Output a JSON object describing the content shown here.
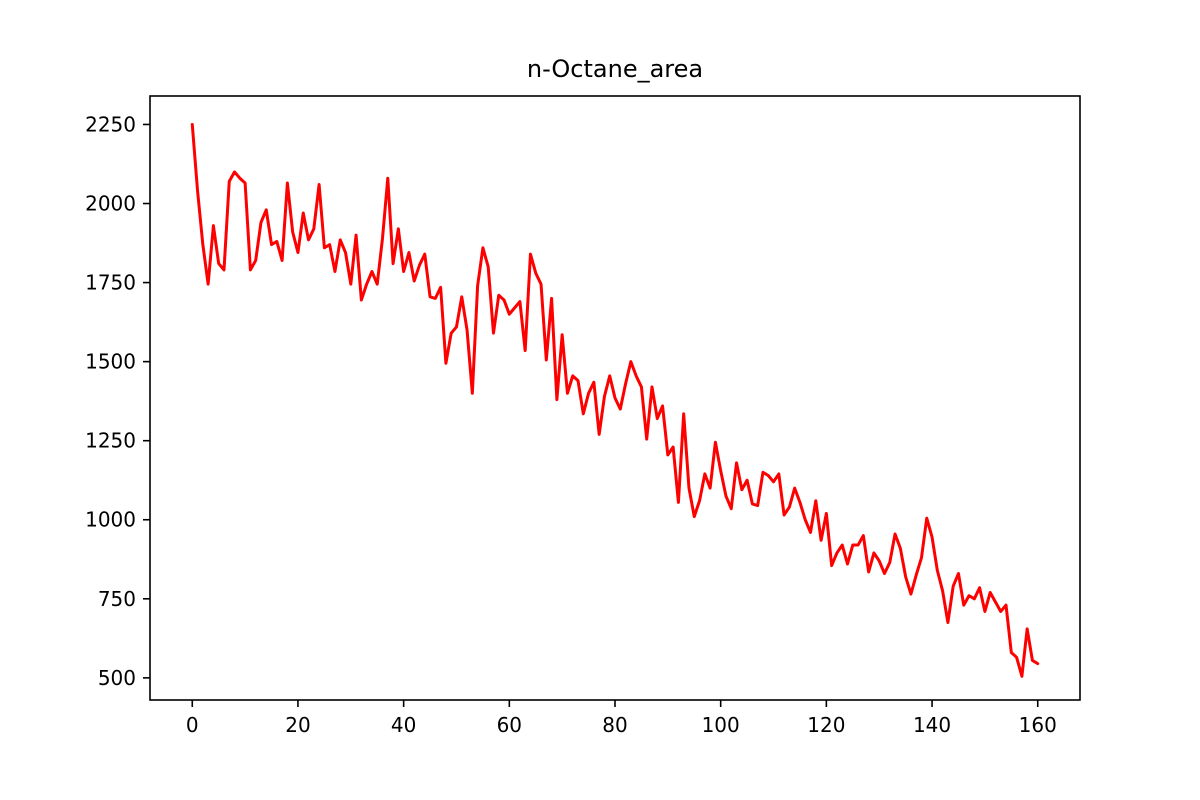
{
  "chart_data": {
    "type": "line",
    "title": "n-Octane_area",
    "xlabel": "",
    "ylabel": "",
    "xlim": [
      -8,
      168
    ],
    "ylim": [
      430,
      2340
    ],
    "x_ticks": [
      0,
      20,
      40,
      60,
      80,
      100,
      120,
      140,
      160
    ],
    "x_tick_labels": [
      "0",
      "20",
      "40",
      "60",
      "80",
      "100",
      "120",
      "140",
      "160"
    ],
    "y_ticks": [
      500,
      750,
      1000,
      1250,
      1500,
      1750,
      2000,
      2250
    ],
    "y_tick_labels": [
      "500",
      "750",
      "1000",
      "1250",
      "1500",
      "1750",
      "2000",
      "2250"
    ],
    "grid": false,
    "legend": "none",
    "series": [
      {
        "color": "#ff0000",
        "x": [
          0,
          1,
          2,
          3,
          4,
          5,
          6,
          7,
          8,
          9,
          10,
          11,
          12,
          13,
          14,
          15,
          16,
          17,
          18,
          19,
          20,
          21,
          22,
          23,
          24,
          25,
          26,
          27,
          28,
          29,
          30,
          31,
          32,
          33,
          34,
          35,
          36,
          37,
          38,
          39,
          40,
          41,
          42,
          43,
          44,
          45,
          46,
          47,
          48,
          49,
          50,
          51,
          52,
          53,
          54,
          55,
          56,
          57,
          58,
          59,
          60,
          61,
          62,
          63,
          64,
          65,
          66,
          67,
          68,
          69,
          70,
          71,
          72,
          73,
          74,
          75,
          76,
          77,
          78,
          79,
          80,
          81,
          82,
          83,
          84,
          85,
          86,
          87,
          88,
          89,
          90,
          91,
          92,
          93,
          94,
          95,
          96,
          97,
          98,
          99,
          100,
          101,
          102,
          103,
          104,
          105,
          106,
          107,
          108,
          109,
          110,
          111,
          112,
          113,
          114,
          115,
          116,
          117,
          118,
          119,
          120,
          121,
          122,
          123,
          124,
          125,
          126,
          127,
          128,
          129,
          130,
          131,
          132,
          133,
          134,
          135,
          136,
          137,
          138,
          139,
          140,
          141,
          142,
          143,
          144,
          145,
          146,
          147,
          148,
          149,
          150,
          151,
          152,
          153,
          154,
          155,
          156,
          157,
          158,
          159,
          160
        ],
        "y": [
          2250,
          2040,
          1870,
          1745,
          1930,
          1810,
          1790,
          2070,
          2100,
          2080,
          2065,
          1790,
          1820,
          1940,
          1980,
          1870,
          1880,
          1820,
          2065,
          1910,
          1845,
          1970,
          1885,
          1920,
          2060,
          1860,
          1870,
          1785,
          1885,
          1845,
          1745,
          1900,
          1695,
          1745,
          1785,
          1745,
          1890,
          2080,
          1810,
          1920,
          1785,
          1845,
          1755,
          1805,
          1840,
          1705,
          1700,
          1735,
          1495,
          1590,
          1610,
          1705,
          1600,
          1400,
          1740,
          1860,
          1800,
          1590,
          1710,
          1695,
          1650,
          1670,
          1690,
          1535,
          1840,
          1780,
          1745,
          1505,
          1700,
          1380,
          1585,
          1400,
          1455,
          1440,
          1335,
          1400,
          1435,
          1270,
          1390,
          1455,
          1385,
          1350,
          1430,
          1500,
          1455,
          1420,
          1255,
          1420,
          1320,
          1360,
          1205,
          1230,
          1055,
          1335,
          1100,
          1010,
          1060,
          1145,
          1100,
          1245,
          1155,
          1075,
          1035,
          1180,
          1095,
          1125,
          1050,
          1045,
          1150,
          1140,
          1120,
          1145,
          1015,
          1040,
          1100,
          1055,
          1000,
          960,
          1060,
          935,
          1020,
          855,
          895,
          920,
          860,
          920,
          920,
          950,
          835,
          895,
          870,
          830,
          865,
          955,
          910,
          820,
          765,
          825,
          880,
          1005,
          945,
          840,
          775,
          675,
          790,
          830,
          730,
          760,
          750,
          785,
          710,
          770,
          740,
          710,
          730,
          580,
          565,
          505,
          655,
          555,
          545
        ]
      }
    ]
  }
}
